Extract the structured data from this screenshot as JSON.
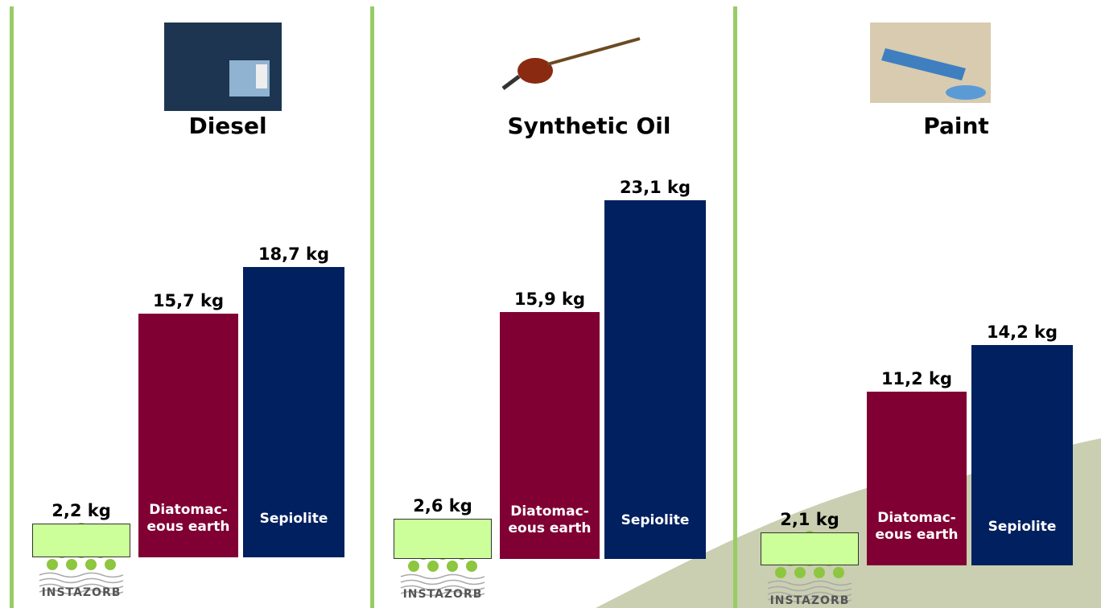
{
  "chart_data": [
    {
      "type": "bar",
      "title": "Diesel",
      "categories": [
        "INSTAZORB",
        "Diatomac-\neous earth",
        "Sepiolite"
      ],
      "values": [
        2.2,
        15.7,
        18.7
      ],
      "value_labels": [
        "2,2 kg",
        "15,7 kg",
        "18,7 kg"
      ],
      "colors": [
        "#ccff99",
        "#800033",
        "#002060"
      ]
    },
    {
      "type": "bar",
      "title": "Synthetic Oil",
      "categories": [
        "INSTAZORB",
        "Diatomac-\neous earth",
        "Sepiolite"
      ],
      "values": [
        2.6,
        15.9,
        23.1
      ],
      "value_labels": [
        "2,6 kg",
        "15,9 kg",
        "23,1 kg"
      ],
      "colors": [
        "#ccff99",
        "#800033",
        "#002060"
      ]
    },
    {
      "type": "bar",
      "title": "Paint",
      "categories": [
        "INSTAZORB",
        "Diatomac-\neous earth",
        "Sepiolite"
      ],
      "values": [
        2.1,
        11.2,
        14.2
      ],
      "value_labels": [
        "2,1 kg",
        "11,2 kg",
        "14,2 kg"
      ],
      "colors": [
        "#ccff99",
        "#800033",
        "#002060"
      ]
    }
  ]
}
